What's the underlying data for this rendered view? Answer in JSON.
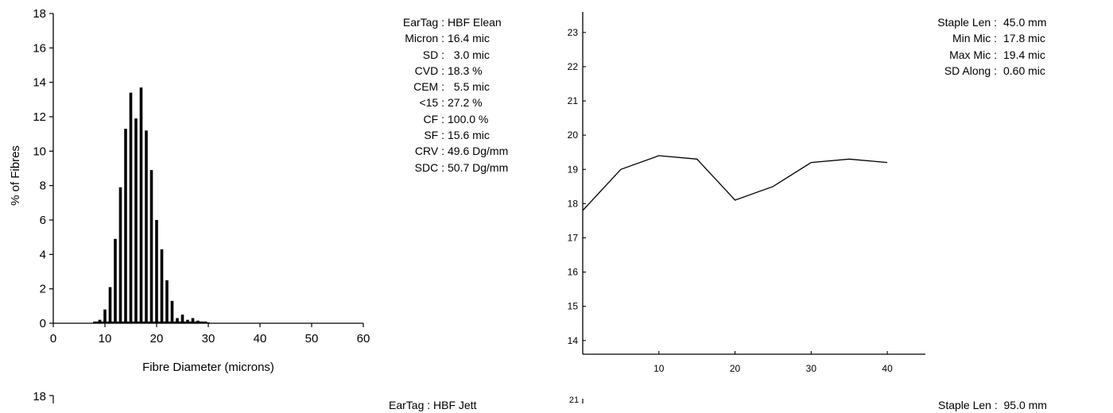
{
  "panel1": {
    "histogram": {
      "type": "bar",
      "xlabel": "Fibre Diameter (microns)",
      "ylabel": "% of Fibres",
      "xlim": [
        0,
        60
      ],
      "ylim": [
        0,
        18
      ],
      "xticks": [
        0,
        10,
        20,
        30,
        40,
        50,
        60
      ],
      "yticks": [
        0,
        2,
        4,
        6,
        8,
        10,
        12,
        14,
        16,
        18
      ],
      "x": [
        8,
        8.5,
        9,
        9.5,
        10,
        10.5,
        11,
        11.5,
        12,
        12.5,
        13,
        13.5,
        14,
        14.5,
        15,
        15.5,
        16,
        16.5,
        17,
        17.5,
        18,
        18.5,
        19,
        19.5,
        20,
        20.5,
        21,
        21.5,
        22,
        22.5,
        23,
        23.5,
        24,
        24.5,
        25,
        25.5,
        26,
        26.5,
        27,
        27.5,
        28,
        28.5,
        29,
        29.5,
        30
      ],
      "values": [
        0.1,
        0.1,
        0.2,
        0.1,
        0.8,
        0.1,
        2.1,
        0.1,
        4.9,
        0.1,
        7.9,
        0.1,
        11.3,
        0.1,
        13.4,
        0.1,
        11.9,
        0.1,
        13.7,
        0.1,
        11.2,
        0.1,
        8.9,
        0.1,
        6.0,
        0.1,
        4.3,
        0.1,
        2.5,
        0.1,
        1.3,
        0.1,
        0.3,
        0.1,
        0.5,
        0.1,
        0.2,
        0.1,
        0.3,
        0.1,
        0.15,
        0.1,
        0.1,
        0.1,
        0.05
      ]
    },
    "stats": [
      {
        "label": "EarTag",
        "value": "HBF Elean"
      },
      {
        "label": "Micron",
        "value": "16.4 mic"
      },
      {
        "label": "SD",
        "value": "  3.0 mic"
      },
      {
        "label": "CVD",
        "value": "18.3 %"
      },
      {
        "label": "CEM",
        "value": "  5.5 mic"
      },
      {
        "label": "<15",
        "value": "27.2 %"
      },
      {
        "label": "CF",
        "value": "100.0 %"
      },
      {
        "label": "SF",
        "value": "15.6 mic"
      },
      {
        "label": "CRV",
        "value": "49.6 Dg/mm"
      },
      {
        "label": "SDC",
        "value": "50.7 Dg/mm"
      }
    ],
    "profile": {
      "type": "line",
      "xlim": [
        0,
        45
      ],
      "ylim": [
        13.6,
        23.6
      ],
      "xticks": [
        10,
        20,
        30,
        40
      ],
      "yticks": [
        14,
        15,
        16,
        17,
        18,
        19,
        20,
        21,
        22,
        23
      ],
      "x": [
        0,
        5,
        10,
        15,
        20,
        25,
        30,
        35,
        40
      ],
      "y": [
        17.8,
        19.0,
        19.4,
        19.3,
        18.1,
        18.5,
        19.2,
        19.3,
        19.2
      ]
    },
    "profile_stats": [
      {
        "label": "Staple Len",
        "value": "45.0 mm"
      },
      {
        "label": "Min Mic",
        "value": "17.8 mic"
      },
      {
        "label": "Max Mic",
        "value": "19.4 mic"
      },
      {
        "label": "SD Along",
        "value": "0.60 mic"
      }
    ]
  },
  "panel2_partial": {
    "y_top_tick": "18",
    "eartag_fragment": "EarTag : HBF Jett",
    "profile_top_tick": "21",
    "staple_len_fragment": "Staple Len :  95.0 mm"
  },
  "chart_data": [
    {
      "type": "bar",
      "title": "",
      "xlabel": "Fibre Diameter (microns)",
      "ylabel": "% of Fibres",
      "xlim": [
        0,
        60
      ],
      "ylim": [
        0,
        18
      ],
      "x": [
        8,
        9,
        10,
        11,
        12,
        13,
        14,
        15,
        16,
        17,
        18,
        19,
        20,
        21,
        22,
        23,
        24,
        25,
        26,
        27,
        28,
        29,
        30
      ],
      "values": [
        0.1,
        0.2,
        0.8,
        2.1,
        4.9,
        7.9,
        11.3,
        13.4,
        11.9,
        13.7,
        11.2,
        8.9,
        6.0,
        4.3,
        2.5,
        1.3,
        0.3,
        0.5,
        0.2,
        0.3,
        0.15,
        0.1,
        0.05
      ]
    },
    {
      "type": "line",
      "title": "",
      "xlabel": "",
      "ylabel": "",
      "xlim": [
        0,
        45
      ],
      "ylim": [
        13.6,
        23.6
      ],
      "x": [
        0,
        5,
        10,
        15,
        20,
        25,
        30,
        35,
        40
      ],
      "y": [
        17.8,
        19.0,
        19.4,
        19.3,
        18.1,
        18.5,
        19.2,
        19.3,
        19.2
      ]
    }
  ]
}
